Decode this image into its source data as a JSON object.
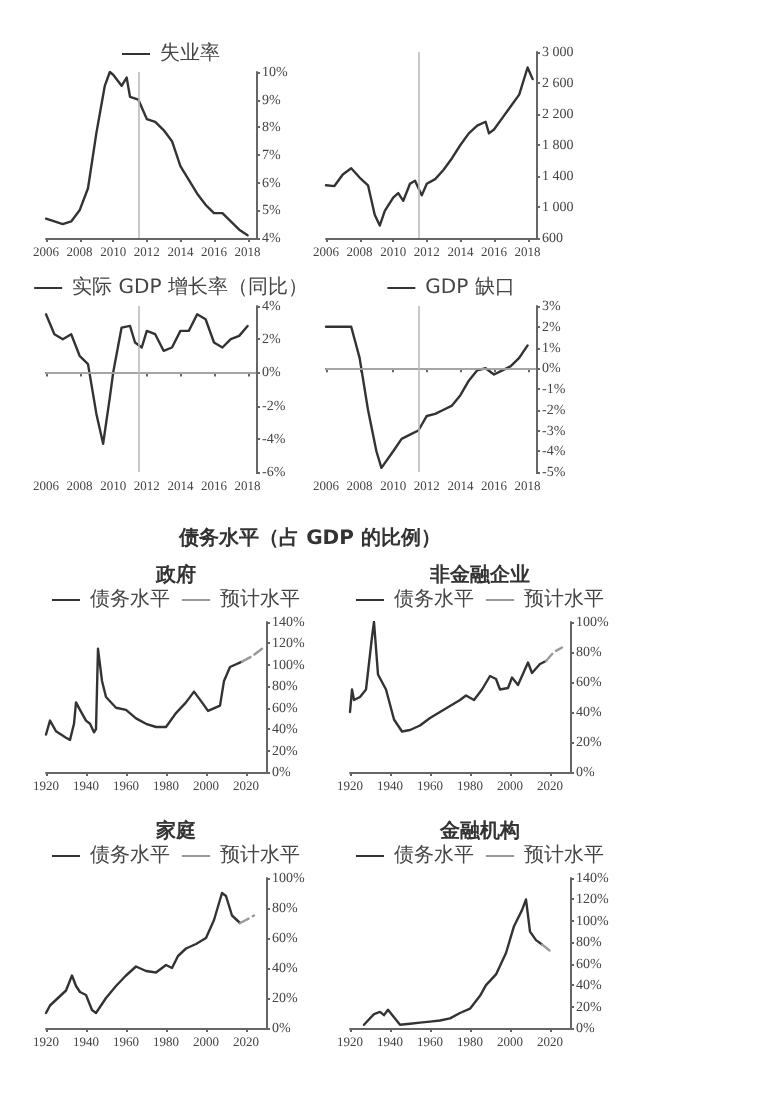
{
  "chart_data": [
    {
      "type": "line",
      "marker": "none",
      "legend": "top",
      "grid": false,
      "xlim": [
        2006,
        2018.5
      ],
      "xticks": [
        2006,
        2008,
        2010,
        2012,
        2014,
        2016,
        2018
      ],
      "ylim": [
        4,
        10
      ],
      "yticks": [
        {
          "value": 4,
          "label": "4%"
        },
        {
          "value": 5,
          "label": "5%"
        },
        {
          "value": 6,
          "label": "6%"
        },
        {
          "value": 7,
          "label": "7%"
        },
        {
          "value": 8,
          "label": "8%"
        },
        {
          "value": 9,
          "label": "9%"
        },
        {
          "value": 10,
          "label": "10%"
        }
      ],
      "ref_lines": [
        {
          "axis": "x",
          "value": 2011.5,
          "color": "#bbbbbb"
        }
      ],
      "series": [
        {
          "name": "失业率",
          "color": "#333333",
          "x": [
            2006,
            2006.5,
            2007,
            2007.5,
            2008,
            2008.5,
            2009,
            2009.5,
            2009.8,
            2010,
            2010.5,
            2010.8,
            2011,
            2011.5,
            2012,
            2012.5,
            2013,
            2013.5,
            2014,
            2014.5,
            2015,
            2015.5,
            2016,
            2016.5,
            2017,
            2017.5,
            2018
          ],
          "values": [
            4.7,
            4.6,
            4.5,
            4.6,
            5.0,
            5.8,
            7.8,
            9.5,
            10.0,
            9.9,
            9.5,
            9.8,
            9.1,
            9.0,
            8.3,
            8.2,
            7.9,
            7.5,
            6.6,
            6.1,
            5.6,
            5.2,
            4.9,
            4.9,
            4.6,
            4.3,
            4.1
          ]
        }
      ]
    },
    {
      "type": "line",
      "marker": "none",
      "grid": false,
      "xlim": [
        2006,
        2018.5
      ],
      "xticks": [
        2006,
        2008,
        2010,
        2012,
        2014,
        2016,
        2018
      ],
      "ylim": [
        600,
        3000
      ],
      "yticks": [
        600,
        {
          "value": 1000,
          "label": "1 000"
        },
        {
          "value": 1400,
          "label": "1 400"
        },
        {
          "value": 1800,
          "label": "1 800"
        },
        {
          "value": 2200,
          "label": "2 200"
        },
        {
          "value": 2600,
          "label": "2 600"
        },
        {
          "value": 3000,
          "label": "3 000"
        }
      ],
      "ref_lines": [
        {
          "axis": "x",
          "value": 2011.5,
          "color": "#bbbbbb"
        }
      ],
      "series": [
        {
          "color": "#333333",
          "x": [
            2006,
            2006.5,
            2007,
            2007.5,
            2008,
            2008.5,
            2008.9,
            2009.2,
            2009.5,
            2010,
            2010.3,
            2010.6,
            2011,
            2011.3,
            2011.7,
            2012,
            2012.5,
            2013,
            2013.5,
            2014,
            2014.5,
            2015,
            2015.5,
            2015.7,
            2016,
            2016.5,
            2017,
            2017.5,
            2018,
            2018.3
          ],
          "values": [
            1280,
            1270,
            1420,
            1500,
            1380,
            1280,
            900,
            760,
            950,
            1120,
            1180,
            1080,
            1300,
            1340,
            1150,
            1300,
            1360,
            1480,
            1630,
            1800,
            1950,
            2050,
            2100,
            1950,
            2000,
            2150,
            2300,
            2450,
            2800,
            2650
          ]
        }
      ]
    },
    {
      "type": "line",
      "marker": "none",
      "legend": "top",
      "grid": false,
      "xlim": [
        2006,
        2018.5
      ],
      "xticks": [
        2006,
        2008,
        2010,
        2012,
        2014,
        2016,
        2018
      ],
      "ylim": [
        -6,
        4
      ],
      "yticks": [
        {
          "value": -6,
          "label": "-6%"
        },
        {
          "value": -4,
          "label": "-4%"
        },
        {
          "value": -2,
          "label": "-2%"
        },
        {
          "value": 0,
          "label": "0%"
        },
        {
          "value": 2,
          "label": "2%"
        },
        {
          "value": 4,
          "label": "4%"
        }
      ],
      "ref_lines": [
        {
          "axis": "x",
          "value": 2011.5,
          "color": "#bbbbbb"
        },
        {
          "axis": "y",
          "value": 0,
          "color": "#bbbbbb"
        }
      ],
      "series": [
        {
          "name": "实际 GDP 增长率（同比）",
          "color": "#333333",
          "x": [
            2006,
            2006.5,
            2007,
            2007.5,
            2008,
            2008.5,
            2009,
            2009.4,
            2009.8,
            2010,
            2010.5,
            2011,
            2011.3,
            2011.7,
            2012,
            2012.5,
            2013,
            2013.5,
            2014,
            2014.5,
            2015,
            2015.5,
            2016,
            2016.5,
            2017,
            2017.5,
            2018
          ],
          "values": [
            3.5,
            2.3,
            2.0,
            2.3,
            1.0,
            0.5,
            -2.5,
            -4.3,
            -1.5,
            0,
            2.7,
            2.8,
            1.8,
            1.5,
            2.5,
            2.3,
            1.3,
            1.5,
            2.5,
            2.5,
            3.5,
            3.2,
            1.8,
            1.5,
            2.0,
            2.2,
            2.8
          ]
        }
      ]
    },
    {
      "type": "line",
      "marker": "none",
      "legend": "top",
      "grid": false,
      "xlim": [
        2006,
        2018.5
      ],
      "xticks": [
        2006,
        2008,
        2010,
        2012,
        2014,
        2016,
        2018
      ],
      "ylim": [
        -5,
        3
      ],
      "yticks": [
        {
          "value": -5,
          "label": "-5%"
        },
        {
          "value": -4,
          "label": "-4%"
        },
        {
          "value": -3,
          "label": "-3%"
        },
        {
          "value": -2,
          "label": "-2%"
        },
        {
          "value": -1,
          "label": "-1%"
        },
        {
          "value": 0,
          "label": "0%"
        },
        {
          "value": 1,
          "label": "1%"
        },
        {
          "value": 2,
          "label": "2%"
        },
        {
          "value": 3,
          "label": "3%"
        }
      ],
      "ref_lines": [
        {
          "axis": "x",
          "value": 2011.5,
          "color": "#bbbbbb"
        },
        {
          "axis": "y",
          "value": 0,
          "color": "#bbbbbb"
        }
      ],
      "series": [
        {
          "name": "GDP 缺口",
          "color": "#333333",
          "x": [
            2006,
            2007,
            2007.5,
            2008,
            2008.5,
            2009,
            2009.3,
            2010,
            2010.5,
            2011,
            2011.5,
            2012,
            2012.5,
            2013,
            2013.5,
            2014,
            2014.5,
            2015,
            2015.5,
            2016,
            2016.5,
            2017,
            2017.5,
            2018
          ],
          "values": [
            2.0,
            2.0,
            2.0,
            0.5,
            -2.0,
            -4.0,
            -4.8,
            -4.0,
            -3.4,
            -3.2,
            -3.0,
            -2.3,
            -2.2,
            -2.0,
            -1.8,
            -1.3,
            -0.6,
            -0.1,
            0.0,
            -0.3,
            -0.1,
            0.1,
            0.5,
            1.1
          ]
        }
      ]
    },
    {
      "type": "other",
      "title": "债务水平（占 GDP 的比例）"
    },
    {
      "type": "line",
      "marker": "none",
      "legend": "top",
      "grid": false,
      "title": "政府",
      "xlim": [
        1920,
        2030
      ],
      "xticks": [
        1920,
        1940,
        1960,
        1980,
        2000,
        2020
      ],
      "ylim": [
        0,
        140
      ],
      "yticks": [
        {
          "value": 0,
          "label": "0%"
        },
        {
          "value": 20,
          "label": "20%"
        },
        {
          "value": 40,
          "label": "40%"
        },
        {
          "value": 60,
          "label": "60%"
        },
        {
          "value": 80,
          "label": "80%"
        },
        {
          "value": 100,
          "label": "100%"
        },
        {
          "value": 120,
          "label": "120%"
        },
        {
          "value": 140,
          "label": "140%"
        }
      ],
      "series": [
        {
          "name": "债务水平",
          "color": "#333333",
          "line_style": "solid",
          "x": [
            1920,
            1922,
            1925,
            1930,
            1932,
            1934,
            1935,
            1937,
            1940,
            1942,
            1944,
            1945,
            1946,
            1948,
            1950,
            1955,
            1960,
            1965,
            1970,
            1975,
            1980,
            1985,
            1990,
            1994,
            1998,
            2001,
            2007,
            2009,
            2012,
            2018
          ],
          "values": [
            35,
            48,
            38,
            32,
            30,
            45,
            65,
            58,
            48,
            45,
            37,
            40,
            115,
            85,
            70,
            60,
            58,
            50,
            45,
            42,
            42,
            55,
            65,
            75,
            65,
            57,
            62,
            85,
            98,
            103
          ]
        },
        {
          "name": "预计水平",
          "color": "#999999",
          "line_style": "dashed",
          "x": [
            2018,
            2023,
            2028
          ],
          "values": [
            103,
            108,
            115
          ]
        }
      ]
    },
    {
      "type": "line",
      "marker": "none",
      "legend": "top",
      "grid": false,
      "title": "非金融企业",
      "xlim": [
        1920,
        2030
      ],
      "xticks": [
        1920,
        1940,
        1960,
        1980,
        2000,
        2020
      ],
      "ylim": [
        0,
        100
      ],
      "yticks": [
        {
          "value": 0,
          "label": "0%"
        },
        {
          "value": 20,
          "label": "20%"
        },
        {
          "value": 40,
          "label": "40%"
        },
        {
          "value": 60,
          "label": "60%"
        },
        {
          "value": 80,
          "label": "80%"
        },
        {
          "value": 100,
          "label": "100%"
        }
      ],
      "series": [
        {
          "name": "债务水平",
          "color": "#333333",
          "line_style": "solid",
          "x": [
            1920,
            1921,
            1922,
            1925,
            1928,
            1931,
            1932,
            1934,
            1938,
            1942,
            1946,
            1950,
            1955,
            1960,
            1965,
            1970,
            1975,
            1978,
            1982,
            1986,
            1990,
            1993,
            1995,
            1999,
            2001,
            2004,
            2009,
            2011,
            2015,
            2018
          ],
          "values": [
            40,
            55,
            48,
            50,
            55,
            90,
            100,
            65,
            55,
            35,
            27,
            28,
            31,
            36,
            40,
            44,
            48,
            51,
            48,
            55,
            64,
            62,
            55,
            56,
            63,
            58,
            73,
            66,
            72,
            74
          ]
        },
        {
          "name": "预计水平",
          "color": "#999999",
          "line_style": "dashed",
          "x": [
            2018,
            2022,
            2026
          ],
          "values": [
            74,
            80,
            83
          ]
        }
      ]
    },
    {
      "type": "line",
      "marker": "none",
      "legend": "top",
      "grid": false,
      "title": "家庭",
      "xlim": [
        1920,
        2030
      ],
      "xticks": [
        1920,
        1940,
        1960,
        1980,
        2000,
        2020
      ],
      "ylim": [
        0,
        100
      ],
      "yticks": [
        {
          "value": 0,
          "label": "0%"
        },
        {
          "value": 20,
          "label": "20%"
        },
        {
          "value": 40,
          "label": "40%"
        },
        {
          "value": 60,
          "label": "60%"
        },
        {
          "value": 80,
          "label": "80%"
        },
        {
          "value": 100,
          "label": "100%"
        }
      ],
      "series": [
        {
          "name": "债务水平",
          "color": "#333333",
          "line_style": "solid",
          "x": [
            1920,
            1922,
            1926,
            1930,
            1933,
            1935,
            1937,
            1940,
            1943,
            1945,
            1950,
            1955,
            1960,
            1965,
            1970,
            1975,
            1980,
            1983,
            1986,
            1990,
            1995,
            2000,
            2004,
            2008,
            2010,
            2013,
            2017
          ],
          "values": [
            10,
            15,
            20,
            25,
            35,
            28,
            24,
            22,
            12,
            10,
            20,
            28,
            35,
            41,
            38,
            37,
            42,
            40,
            48,
            53,
            56,
            60,
            72,
            90,
            88,
            75,
            70
          ]
        },
        {
          "name": "预计水平",
          "color": "#999999",
          "line_style": "dashed",
          "x": [
            2017,
            2020,
            2024
          ],
          "values": [
            70,
            72,
            75
          ]
        }
      ]
    },
    {
      "type": "line",
      "marker": "none",
      "legend": "top",
      "grid": false,
      "title": "金融机构",
      "xlim": [
        1920,
        2030
      ],
      "xticks": [
        1920,
        1940,
        1960,
        1980,
        2000,
        2020
      ],
      "ylim": [
        0,
        140
      ],
      "yticks": [
        {
          "value": 0,
          "label": "0%"
        },
        {
          "value": 20,
          "label": "20%"
        },
        {
          "value": 40,
          "label": "40%"
        },
        {
          "value": 60,
          "label": "60%"
        },
        {
          "value": 80,
          "label": "80%"
        },
        {
          "value": 100,
          "label": "100%"
        },
        {
          "value": 120,
          "label": "120%"
        },
        {
          "value": 140,
          "label": "140%"
        }
      ],
      "series": [
        {
          "name": "债务水平",
          "color": "#333333",
          "line_style": "solid",
          "x": [
            1927,
            1932,
            1935,
            1937,
            1939,
            1942,
            1945,
            1950,
            1955,
            1960,
            1965,
            1970,
            1975,
            1980,
            1985,
            1988,
            1993,
            1998,
            2002,
            2006,
            2008,
            2010,
            2013,
            2016
          ],
          "values": [
            3,
            13,
            15,
            12,
            17,
            10,
            3,
            4,
            5,
            6,
            7,
            9,
            14,
            18,
            30,
            40,
            50,
            70,
            95,
            110,
            120,
            90,
            82,
            78
          ]
        },
        {
          "name": "预计水平",
          "color": "#999999",
          "line_style": "dashed",
          "x": [
            2016,
            2020
          ],
          "values": [
            78,
            72
          ]
        }
      ]
    }
  ]
}
